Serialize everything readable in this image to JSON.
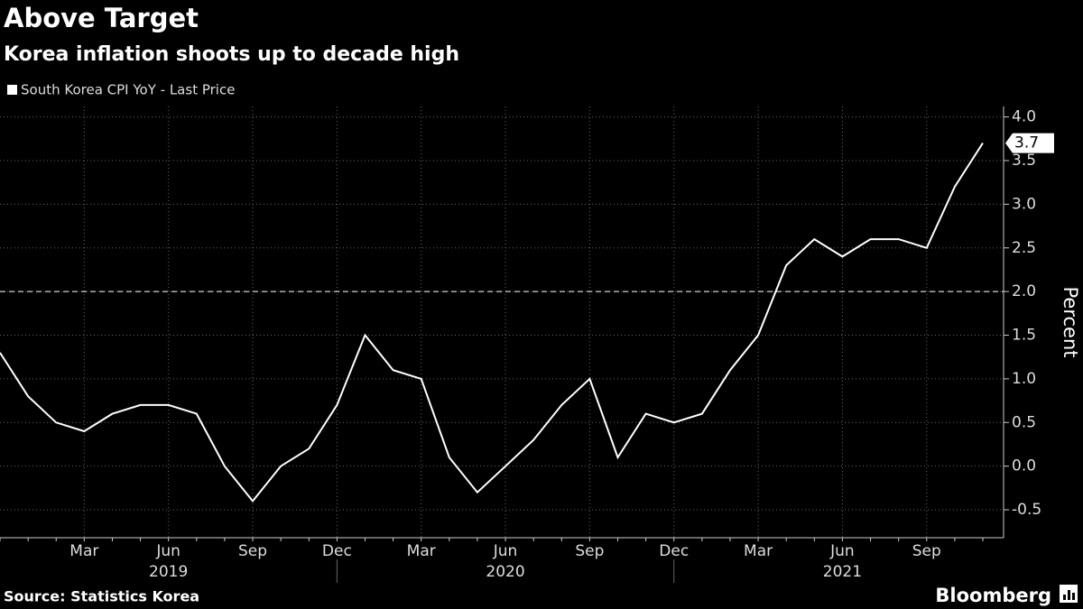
{
  "chart_data": {
    "type": "line",
    "title": "Above Target",
    "subtitle": "Korea inflation shoots up to decade high",
    "y_label": "Percent",
    "source": "Source: Statistics Korea",
    "brand": "Bloomberg",
    "categories": [
      null,
      null,
      null,
      "Mar",
      null,
      null,
      "Jun",
      null,
      null,
      "Sep",
      null,
      null,
      "Dec",
      null,
      null,
      "Mar",
      null,
      null,
      "Jun",
      null,
      null,
      "Sep",
      null,
      null,
      "Dec",
      null,
      null,
      "Mar",
      null,
      null,
      "Jun",
      null,
      null,
      "Sep",
      null,
      null
    ],
    "years": [
      "2019",
      "2020",
      "2021"
    ],
    "series": [
      {
        "name": "South Korea CPI YoY - Last Price",
        "color": "#ffffff",
        "values": [
          1.3,
          0.8,
          0.5,
          0.4,
          0.6,
          0.7,
          0.7,
          0.6,
          0.0,
          -0.4,
          0.0,
          0.2,
          0.7,
          1.5,
          1.1,
          1.0,
          0.1,
          -0.3,
          0.0,
          0.3,
          0.7,
          1.0,
          0.1,
          0.6,
          0.5,
          0.6,
          1.1,
          1.5,
          2.3,
          2.6,
          2.4,
          2.6,
          2.6,
          2.5,
          3.2,
          3.7
        ]
      }
    ],
    "ylim": [
      -0.82,
      4.12
    ],
    "yticks": [
      -0.5,
      {
        "value": 0,
        "label": "0.0"
      },
      0.5,
      {
        "value": 1,
        "label": "1.0"
      },
      1.5,
      {
        "value": 2,
        "label": "2.0"
      },
      2.5,
      {
        "value": 3,
        "label": "3.0"
      },
      3.5,
      {
        "value": 4,
        "label": "4.0"
      }
    ],
    "reference_line": 2,
    "grid": true
  }
}
